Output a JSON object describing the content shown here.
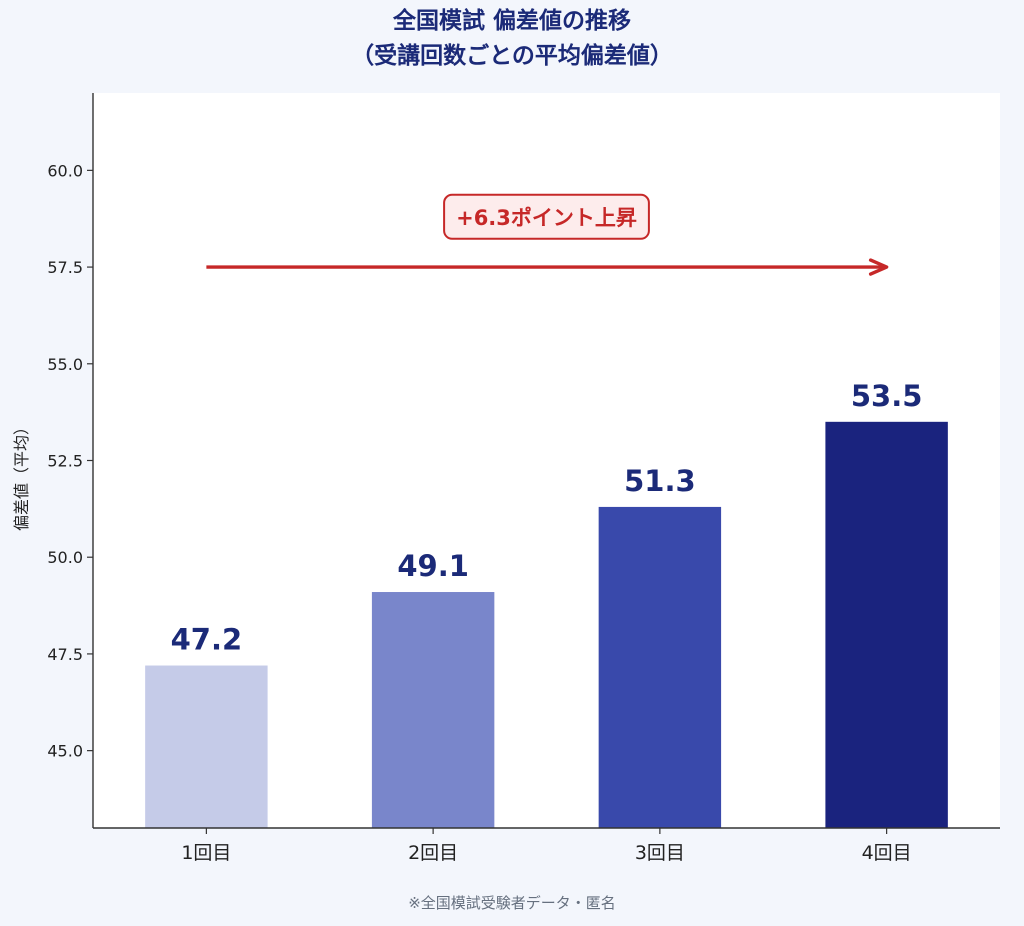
{
  "chart_data": {
    "type": "bar",
    "title": "全国模試 偏差値の推移",
    "subtitle": "（受講回数ごとの平均偏差値）",
    "categories": [
      "1回目",
      "2回目",
      "3回目",
      "4回目"
    ],
    "values": [
      47.2,
      49.1,
      51.3,
      53.5
    ],
    "value_labels": [
      "47.2",
      "49.1",
      "51.3",
      "53.5"
    ],
    "bar_colors": [
      "#c5cbe8",
      "#7986cb",
      "#3949ab",
      "#1a237e"
    ],
    "value_label_color": "#1b2a78",
    "xlabel": "",
    "ylabel": "偏差値（平均）",
    "ylim": [
      43.0,
      62.0
    ],
    "yticks": [
      45.0,
      47.5,
      50.0,
      52.5,
      55.0,
      57.5,
      60.0
    ],
    "ytick_labels": [
      "45.0",
      "47.5",
      "50.0",
      "52.5",
      "55.0",
      "57.5",
      "60.0"
    ],
    "grid": false,
    "annotation": {
      "text": "+6.3ポイント上昇",
      "arrow_from_category": 0,
      "arrow_to_category": 3,
      "arrow_y": 57.5,
      "text_y": 58.8,
      "color": "#c62828",
      "box_fill": "#fdecec"
    }
  },
  "source_note": "※全国模試受験者データ・匿名"
}
